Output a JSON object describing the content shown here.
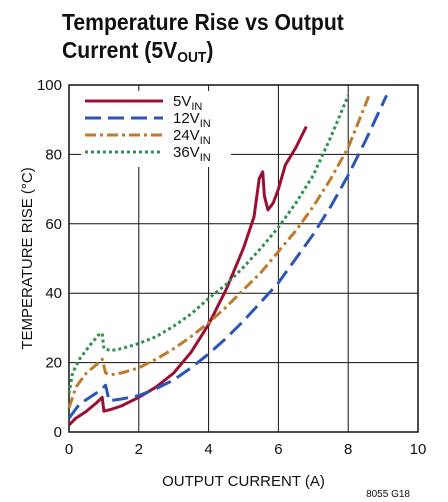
{
  "chart_data": {
    "type": "line",
    "title": "Temperature Rise vs Output Current (5V",
    "title_sub": "OUT",
    "title_tail": ")",
    "xlabel": "OUTPUT CURRENT (A)",
    "ylabel": "TEMPERATURE RISE (°C)",
    "xlim": [
      0,
      10
    ],
    "ylim": [
      0,
      100
    ],
    "xticks": [
      "0",
      "2",
      "4",
      "6",
      "8",
      "10"
    ],
    "yticks": [
      "0",
      "20",
      "40",
      "60",
      "80",
      "100"
    ],
    "grid": true,
    "legend_position": "top-left",
    "note": "8055 G18",
    "series": [
      {
        "name": "5V",
        "name_sub": "IN",
        "color": "#9b0f35",
        "dash": "solid",
        "points": [
          [
            0,
            2
          ],
          [
            0.2,
            4
          ],
          [
            0.5,
            6
          ],
          [
            0.8,
            8.5
          ],
          [
            0.95,
            10
          ],
          [
            1.0,
            6
          ],
          [
            1.2,
            6.5
          ],
          [
            1.5,
            7.5
          ],
          [
            2,
            10
          ],
          [
            2.5,
            13
          ],
          [
            3,
            17
          ],
          [
            3.5,
            23
          ],
          [
            4,
            31
          ],
          [
            4.5,
            41
          ],
          [
            5,
            53
          ],
          [
            5.3,
            62
          ],
          [
            5.45,
            73
          ],
          [
            5.55,
            75
          ],
          [
            5.6,
            68
          ],
          [
            5.7,
            64
          ],
          [
            5.85,
            66
          ],
          [
            6,
            70
          ],
          [
            6.2,
            77
          ],
          [
            6.5,
            82
          ],
          [
            6.8,
            88
          ]
        ]
      },
      {
        "name": "12V",
        "name_sub": "IN",
        "color": "#2b56b4",
        "dash": "long",
        "points": [
          [
            0,
            4
          ],
          [
            0.3,
            8
          ],
          [
            0.6,
            10
          ],
          [
            0.9,
            12
          ],
          [
            1.05,
            13.5
          ],
          [
            1.15,
            9
          ],
          [
            1.5,
            9.5
          ],
          [
            2,
            10.5
          ],
          [
            2.5,
            12.5
          ],
          [
            3,
            15
          ],
          [
            3.5,
            18.5
          ],
          [
            4,
            22.5
          ],
          [
            4.5,
            27
          ],
          [
            5,
            32
          ],
          [
            5.5,
            37.5
          ],
          [
            6,
            43
          ],
          [
            6.5,
            50
          ],
          [
            7,
            57
          ],
          [
            7.5,
            65
          ],
          [
            8,
            74
          ],
          [
            8.5,
            84
          ],
          [
            9.1,
            97
          ]
        ]
      },
      {
        "name": "24V",
        "name_sub": "IN",
        "color": "#c07a2c",
        "dash": "dashdot",
        "points": [
          [
            0,
            7
          ],
          [
            0.2,
            13
          ],
          [
            0.5,
            17
          ],
          [
            0.8,
            19.5
          ],
          [
            0.95,
            21
          ],
          [
            1.05,
            17
          ],
          [
            1.2,
            16.5
          ],
          [
            1.5,
            17
          ],
          [
            2,
            18.5
          ],
          [
            2.5,
            21
          ],
          [
            3,
            24
          ],
          [
            3.5,
            27.5
          ],
          [
            4,
            31.5
          ],
          [
            4.5,
            36
          ],
          [
            5,
            41
          ],
          [
            5.5,
            46
          ],
          [
            6,
            52
          ],
          [
            6.5,
            58
          ],
          [
            7,
            65
          ],
          [
            7.5,
            73
          ],
          [
            8,
            82
          ],
          [
            8.6,
            97
          ]
        ]
      },
      {
        "name": "36V",
        "name_sub": "IN",
        "color": "#2e9150",
        "dash": "dotted",
        "points": [
          [
            0,
            11
          ],
          [
            0.1,
            17
          ],
          [
            0.3,
            21
          ],
          [
            0.6,
            25
          ],
          [
            0.85,
            28
          ],
          [
            0.95,
            28.5
          ],
          [
            1.0,
            24
          ],
          [
            1.2,
            23.5
          ],
          [
            1.5,
            24
          ],
          [
            2,
            25.5
          ],
          [
            2.5,
            27.5
          ],
          [
            3,
            30.5
          ],
          [
            3.5,
            34
          ],
          [
            4,
            38.5
          ],
          [
            4.5,
            42.5
          ],
          [
            5,
            47.5
          ],
          [
            5.5,
            53
          ],
          [
            6,
            59
          ],
          [
            6.5,
            66
          ],
          [
            7,
            74
          ],
          [
            7.5,
            85
          ],
          [
            8,
            97
          ]
        ]
      }
    ]
  }
}
